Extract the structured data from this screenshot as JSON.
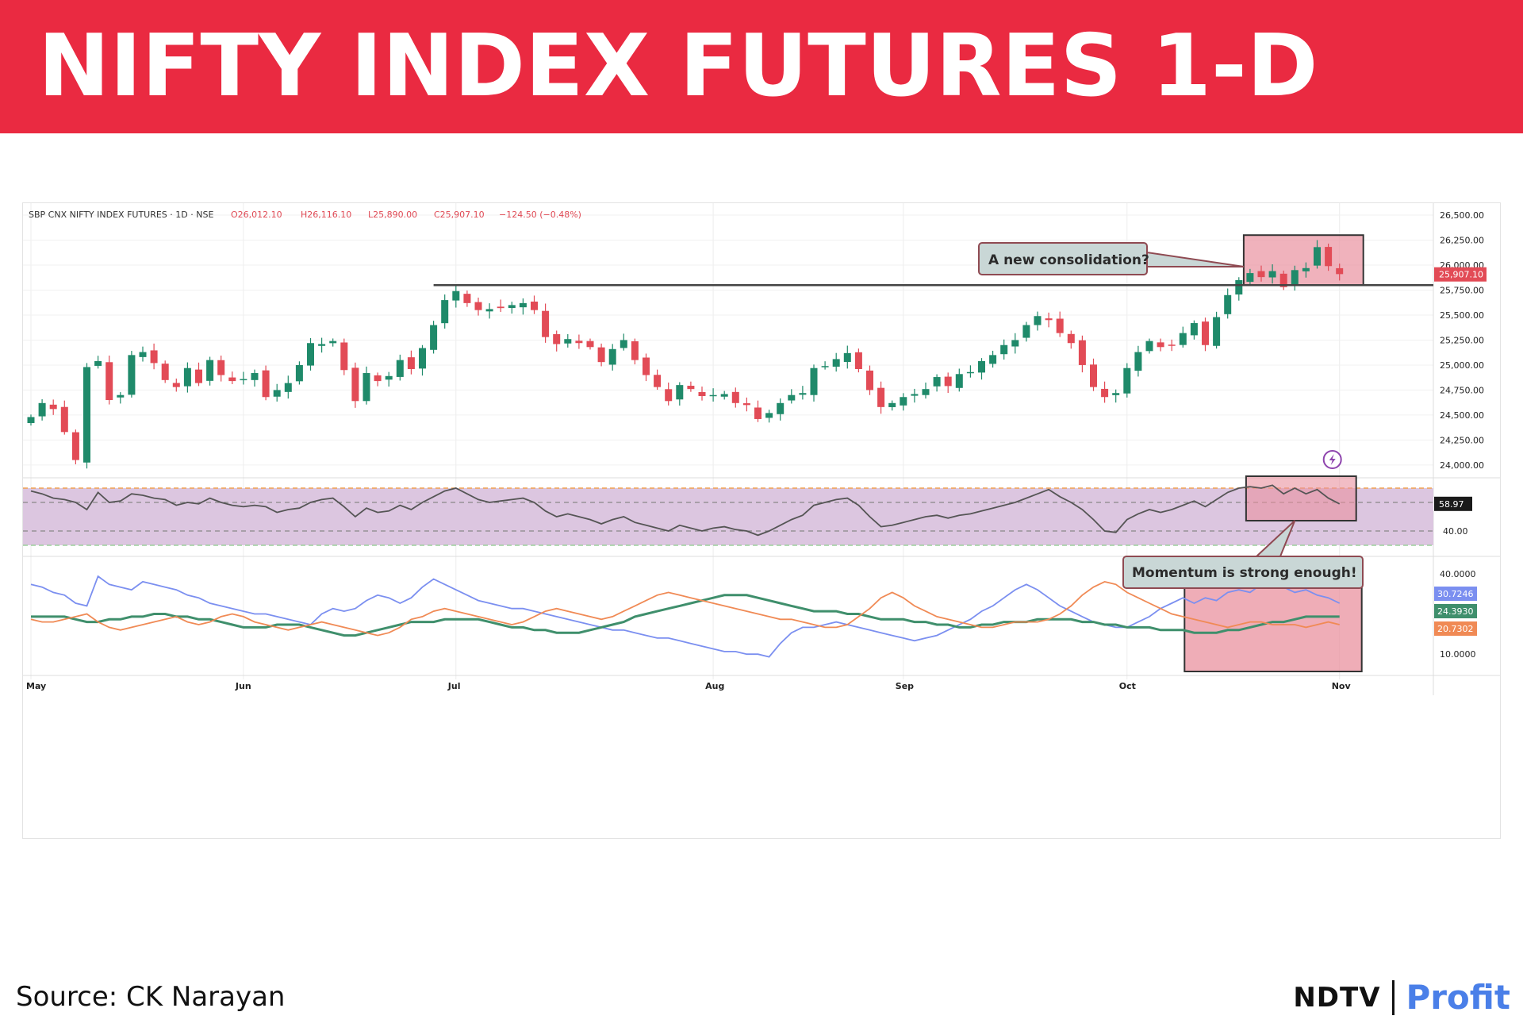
{
  "banner": {
    "title": "NIFTY INDEX FUTURES 1-D",
    "color": "#ea2a41"
  },
  "source": "Source:  CK Narayan",
  "logo": {
    "left": "NDTV",
    "right": "Profit"
  },
  "chart_data": {
    "type": "candlestick",
    "header": {
      "symbol": "SBP CNX NIFTY INDEX FUTURES · 1D · NSE",
      "open": "O26,012.10",
      "high": "H26,116.10",
      "low": "L25,890.00",
      "close": "C25,907.10",
      "change": "−124.50 (−0.48%)"
    },
    "x_labels": [
      {
        "label": "May",
        "day": 0
      },
      {
        "label": "Jun",
        "day": 19
      },
      {
        "label": "Jul",
        "day": 38
      },
      {
        "label": "Aug",
        "day": 61
      },
      {
        "label": "Sep",
        "day": 78
      },
      {
        "label": "Oct",
        "day": 98
      },
      {
        "label": "Nov",
        "day": 117
      }
    ],
    "price_axis": {
      "ticks": [
        "26,500.00",
        "26,250.00",
        "26,000.00",
        "25,750.00",
        "25,500.00",
        "25,250.00",
        "25,000.00",
        "24,750.00",
        "24,500.00",
        "24,250.00",
        "24,000.00"
      ],
      "range": [
        23880,
        26540
      ],
      "last_price": "25,907.10"
    },
    "closes": [
      24480,
      24620,
      24560,
      24330,
      24050,
      24980,
      25040,
      24650,
      24700,
      25100,
      25130,
      25020,
      24850,
      24780,
      24970,
      24820,
      25050,
      24900,
      24840,
      24860,
      24920,
      24680,
      24750,
      24820,
      25000,
      25220,
      25210,
      25240,
      24950,
      24640,
      24920,
      24840,
      24890,
      25050,
      24960,
      25170,
      25400,
      25650,
      25740,
      25620,
      25550,
      25560,
      25570,
      25600,
      25620,
      25550,
      25280,
      25210,
      25260,
      25220,
      25180,
      25030,
      25160,
      25250,
      25050,
      24900,
      24780,
      24640,
      24800,
      24760,
      24690,
      24700,
      24710,
      24620,
      24600,
      24460,
      24520,
      24620,
      24700,
      24720,
      24970,
      24990,
      25060,
      25120,
      24960,
      24750,
      24580,
      24620,
      24680,
      24710,
      24760,
      24880,
      24790,
      24910,
      24930,
      25040,
      25100,
      25200,
      25250,
      25400,
      25490,
      25450,
      25320,
      25220,
      25000,
      24780,
      24680,
      24720,
      24970,
      25130,
      25240,
      25180,
      25200,
      25320,
      25420,
      25200,
      25480,
      25700,
      25850,
      25920,
      25880,
      25940,
      25780,
      25950,
      25970,
      26180,
      25990,
      25910
    ],
    "resistance_level": 25800,
    "annotations": [
      {
        "text": "A new consolidation?",
        "target": "price-box"
      },
      {
        "text": "Momentum is strong enough!",
        "target": "rsi-box"
      }
    ],
    "rsi": {
      "last_value": "58.97",
      "level_label": "40.00",
      "levels": [
        30,
        40,
        60,
        70
      ],
      "band": [
        30,
        70
      ],
      "values": [
        68,
        66,
        63,
        62,
        60,
        55,
        67,
        60,
        61,
        66,
        65,
        63,
        62,
        58,
        60,
        59,
        63,
        60,
        58,
        57,
        58,
        57,
        53,
        55,
        56,
        60,
        62,
        63,
        57,
        50,
        56,
        53,
        54,
        58,
        55,
        60,
        64,
        68,
        70,
        66,
        62,
        60,
        61,
        62,
        63,
        60,
        54,
        50,
        52,
        50,
        48,
        45,
        48,
        50,
        46,
        44,
        42,
        40,
        44,
        42,
        40,
        42,
        43,
        41,
        40,
        37,
        40,
        44,
        48,
        51,
        58,
        60,
        62,
        63,
        58,
        50,
        43,
        44,
        46,
        48,
        50,
        51,
        49,
        51,
        52,
        54,
        56,
        58,
        60,
        63,
        66,
        69,
        64,
        60,
        55,
        48,
        40,
        39,
        48,
        52,
        55,
        53,
        55,
        58,
        61,
        57,
        62,
        67,
        70,
        71,
        70,
        72,
        66,
        70,
        66,
        69,
        63,
        59
      ]
    },
    "dmi": {
      "top_label": "40.0000",
      "bottom_label": "10.0000",
      "range": [
        10,
        40
      ],
      "series": [
        {
          "name": "",
          "last": "30.7246",
          "color": "#7b8ff0",
          "values": [
            36,
            35,
            33,
            32,
            29,
            28,
            39,
            36,
            35,
            34,
            37,
            36,
            35,
            34,
            32,
            31,
            29,
            28,
            27,
            26,
            25,
            25,
            24,
            23,
            22,
            21,
            25,
            27,
            26,
            27,
            30,
            32,
            31,
            29,
            31,
            35,
            38,
            36,
            34,
            32,
            30,
            29,
            28,
            27,
            27,
            26,
            25,
            24,
            23,
            22,
            21,
            20,
            19,
            19,
            18,
            17,
            16,
            16,
            15,
            14,
            13,
            12,
            11,
            11,
            10,
            10,
            9,
            14,
            18,
            20,
            20,
            21,
            22,
            21,
            20,
            19,
            18,
            17,
            16,
            15,
            16,
            17,
            19,
            21,
            23,
            26,
            28,
            31,
            34,
            36,
            34,
            31,
            28,
            26,
            24,
            22,
            21,
            20,
            20,
            22,
            24,
            27,
            29,
            31,
            29,
            31,
            30,
            33,
            34,
            33,
            36,
            37,
            35,
            33,
            34,
            32,
            31,
            29
          ]
        },
        {
          "name": "",
          "last": "24.3930",
          "color": "#3f8f6c",
          "values": [
            24,
            24,
            24,
            24,
            23,
            22,
            22,
            23,
            23,
            24,
            24,
            25,
            25,
            24,
            24,
            23,
            23,
            22,
            21,
            20,
            20,
            20,
            21,
            21,
            21,
            20,
            19,
            18,
            17,
            17,
            18,
            19,
            20,
            21,
            22,
            22,
            22,
            23,
            23,
            23,
            23,
            22,
            21,
            20,
            20,
            19,
            19,
            18,
            18,
            18,
            19,
            20,
            21,
            22,
            24,
            25,
            26,
            27,
            28,
            29,
            30,
            31,
            32,
            32,
            32,
            31,
            30,
            29,
            28,
            27,
            26,
            26,
            26,
            25,
            25,
            24,
            23,
            23,
            23,
            22,
            22,
            21,
            21,
            20,
            20,
            21,
            21,
            22,
            22,
            22,
            23,
            23,
            23,
            23,
            22,
            22,
            21,
            21,
            20,
            20,
            20,
            19,
            19,
            19,
            18,
            18,
            18,
            19,
            19,
            20,
            21,
            22,
            22,
            23,
            24,
            24,
            24,
            24
          ]
        },
        {
          "name": "",
          "last": "20.7302",
          "color": "#f08a55",
          "values": [
            23,
            22,
            22,
            23,
            24,
            25,
            22,
            20,
            19,
            20,
            21,
            22,
            23,
            24,
            22,
            21,
            22,
            24,
            25,
            24,
            22,
            21,
            20,
            19,
            20,
            21,
            22,
            21,
            20,
            19,
            18,
            17,
            18,
            20,
            23,
            24,
            26,
            27,
            26,
            25,
            24,
            23,
            22,
            21,
            22,
            24,
            26,
            27,
            26,
            25,
            24,
            23,
            24,
            26,
            28,
            30,
            32,
            33,
            32,
            31,
            30,
            29,
            28,
            27,
            26,
            25,
            24,
            23,
            23,
            22,
            21,
            20,
            20,
            21,
            24,
            27,
            31,
            33,
            31,
            28,
            26,
            24,
            23,
            22,
            21,
            20,
            20,
            21,
            22,
            22,
            22,
            23,
            25,
            28,
            32,
            35,
            37,
            36,
            33,
            31,
            29,
            27,
            25,
            24,
            23,
            22,
            21,
            20,
            21,
            22,
            22,
            21,
            21,
            21,
            20,
            21,
            22,
            21
          ]
        }
      ]
    }
  }
}
